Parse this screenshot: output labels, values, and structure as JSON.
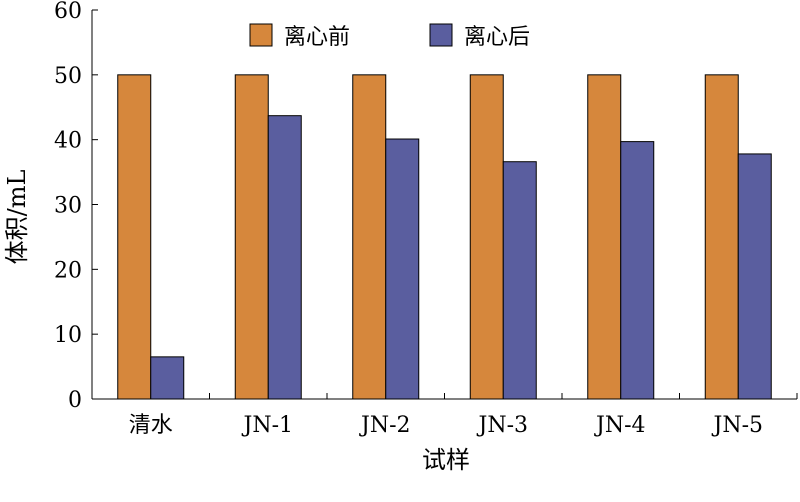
{
  "chart_data": {
    "type": "bar",
    "categories": [
      "清水",
      "JN-1",
      "JN-2",
      "JN-3",
      "JN-4",
      "JN-5"
    ],
    "series": [
      {
        "name": "离心前",
        "color": "#d6873c",
        "values": [
          50,
          50,
          50,
          50,
          50,
          50
        ]
      },
      {
        "name": "离心后",
        "color": "#5a5e9f",
        "values": [
          6.5,
          43.7,
          40.1,
          36.6,
          39.7,
          37.8
        ]
      }
    ],
    "xlabel": "试样",
    "ylabel": "体积/mL",
    "ylim": [
      0,
      60
    ],
    "yticks": [
      "0",
      "10",
      "20",
      "30",
      "40",
      "50",
      "60"
    ],
    "grid": false,
    "legend_position": "top"
  }
}
